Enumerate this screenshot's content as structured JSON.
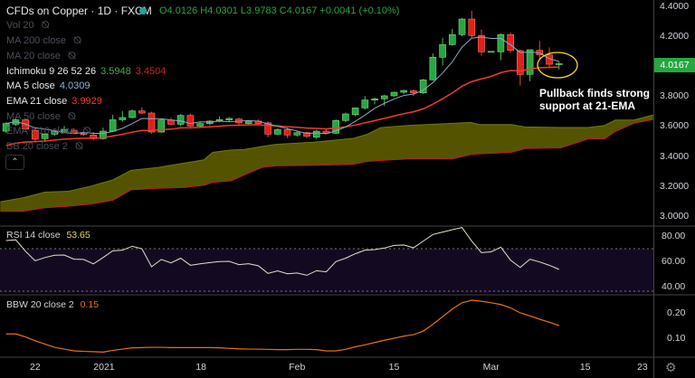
{
  "header": {
    "symbol_title": "CFDs on Copper · 1D · FXCM",
    "open": "O4.0126",
    "high": "H4.0301",
    "low": "L3.9783",
    "close": "C4.0167",
    "change": "+0.0041 (+0.10%)"
  },
  "indicators": [
    {
      "label": "Vol 20",
      "hidden": true
    },
    {
      "label": "MA 200 close",
      "hidden": true
    },
    {
      "label": "MA 20 close",
      "hidden": true
    },
    {
      "label": "Ichimoku 9 26 52 26",
      "v1": "3.5948",
      "v2": "3.4504",
      "hidden": false
    },
    {
      "label": "MA 5 close",
      "v1": "4.0309",
      "hidden": false
    },
    {
      "label": "EMA 21 close",
      "v1": "3.9929",
      "hidden": false
    },
    {
      "label": "MA 50 close",
      "hidden": true
    },
    {
      "label": "EMA 1 10 close",
      "hidden": true
    },
    {
      "label": "BB 20 close 2",
      "hidden": true
    }
  ],
  "collapse_icon": "chevron-up-icon",
  "hidden_icon": "eye-off-icon",
  "price_axis": [
    "4.4000",
    "4.2000",
    "4.0000",
    "3.8000",
    "3.6000",
    "3.4000",
    "3.2000",
    "3.0000"
  ],
  "price_axis_values": [
    4.4,
    4.2,
    4.0,
    3.8,
    3.6,
    3.4,
    3.2,
    3.0
  ],
  "last_price": "4.0167",
  "annotation": {
    "line1": "Pullback finds strong",
    "line2": "support at 21-EMA"
  },
  "rsi": {
    "label": "RSI 14 close",
    "value": "53.65",
    "axis": [
      "80.00",
      "60.00",
      "40.00"
    ],
    "axis_values": [
      80,
      60,
      40
    ],
    "bands": [
      70,
      30
    ]
  },
  "bbw": {
    "label": "BBW 20 close 2",
    "value": "0.15",
    "axis": [
      "0.20",
      "0.10"
    ],
    "axis_values": [
      0.2,
      0.1
    ]
  },
  "time_axis": [
    {
      "label": "22",
      "bar": 3
    },
    {
      "label": "2021",
      "bar": 10.1
    },
    {
      "label": "18",
      "bar": 20.1
    },
    {
      "label": "Feb",
      "bar": 30
    },
    {
      "label": "15",
      "bar": 40
    },
    {
      "label": "Mar",
      "bar": 50
    },
    {
      "label": "15",
      "bar": 59.7
    },
    {
      "label": "23",
      "bar": 65.6
    }
  ],
  "colors": {
    "up": "#26a641",
    "down": "#e0201b",
    "ema": "#f23b2f",
    "ma": "#8fa8c4",
    "cloud": "#545400",
    "rsi_band": "#130a22",
    "bbw": "#e8720c",
    "rsi": "#e6e1c8",
    "annotation": "#f2e21a"
  },
  "chart_data": {
    "type": "candlestick",
    "ohlc": [
      [
        3.566,
        3.625,
        3.555,
        3.617
      ],
      [
        3.612,
        3.65,
        3.6,
        3.642
      ],
      [
        3.642,
        3.648,
        3.575,
        3.58
      ],
      [
        3.572,
        3.59,
        3.5,
        3.512
      ],
      [
        3.516,
        3.552,
        3.495,
        3.546
      ],
      [
        3.546,
        3.575,
        3.535,
        3.566
      ],
      [
        3.564,
        3.6,
        3.555,
        3.576
      ],
      [
        3.572,
        3.585,
        3.545,
        3.552
      ],
      [
        3.552,
        3.565,
        3.535,
        3.544
      ],
      [
        3.54,
        3.56,
        3.505,
        3.516
      ],
      [
        3.516,
        3.59,
        3.51,
        3.566
      ],
      [
        3.566,
        3.675,
        3.56,
        3.642
      ],
      [
        3.642,
        3.7,
        3.63,
        3.657
      ],
      [
        3.657,
        3.71,
        3.65,
        3.701
      ],
      [
        3.701,
        3.725,
        3.68,
        3.687
      ],
      [
        3.687,
        3.695,
        3.55,
        3.56
      ],
      [
        3.56,
        3.65,
        3.555,
        3.641
      ],
      [
        3.641,
        3.655,
        3.605,
        3.612
      ],
      [
        3.612,
        3.68,
        3.6,
        3.671
      ],
      [
        3.671,
        3.685,
        3.595,
        3.6
      ],
      [
        3.6,
        3.625,
        3.59,
        3.617
      ],
      [
        3.617,
        3.64,
        3.605,
        3.633
      ],
      [
        3.633,
        3.665,
        3.625,
        3.643
      ],
      [
        3.641,
        3.66,
        3.63,
        3.651
      ],
      [
        3.647,
        3.655,
        3.6,
        3.621
      ],
      [
        3.617,
        3.64,
        3.605,
        3.633
      ],
      [
        3.633,
        3.645,
        3.61,
        3.617
      ],
      [
        3.621,
        3.63,
        3.525,
        3.546
      ],
      [
        3.546,
        3.585,
        3.54,
        3.576
      ],
      [
        3.576,
        3.59,
        3.52,
        3.54
      ],
      [
        3.54,
        3.565,
        3.53,
        3.556
      ],
      [
        3.556,
        3.562,
        3.52,
        3.532
      ],
      [
        3.526,
        3.575,
        3.515,
        3.566
      ],
      [
        3.566,
        3.58,
        3.545,
        3.552
      ],
      [
        3.552,
        3.645,
        3.548,
        3.637
      ],
      [
        3.637,
        3.69,
        3.625,
        3.681
      ],
      [
        3.677,
        3.725,
        3.665,
        3.721
      ],
      [
        3.721,
        3.8,
        3.712,
        3.774
      ],
      [
        3.774,
        3.79,
        3.745,
        3.782
      ],
      [
        3.782,
        3.81,
        3.735,
        3.802
      ],
      [
        3.802,
        3.83,
        3.795,
        3.826
      ],
      [
        3.826,
        3.842,
        3.815,
        3.838
      ],
      [
        3.836,
        3.845,
        3.8,
        3.822
      ],
      [
        3.822,
        3.915,
        3.815,
        3.909
      ],
      [
        3.909,
        4.085,
        3.905,
        4.06
      ],
      [
        4.06,
        4.19,
        4.005,
        4.144
      ],
      [
        4.144,
        4.25,
        4.138,
        4.211
      ],
      [
        4.211,
        4.322,
        4.2,
        4.315
      ],
      [
        4.315,
        4.37,
        4.19,
        4.205
      ],
      [
        4.205,
        4.245,
        4.07,
        4.096
      ],
      [
        4.096,
        4.1,
        4.092,
        4.099
      ],
      [
        4.096,
        4.22,
        4.04,
        4.211
      ],
      [
        4.211,
        4.225,
        4.09,
        4.106
      ],
      [
        4.104,
        4.11,
        3.87,
        3.945
      ],
      [
        3.945,
        4.11,
        3.9,
        4.11
      ],
      [
        4.106,
        4.168,
        4.04,
        4.076
      ],
      [
        4.076,
        4.125,
        3.985,
        4.013
      ],
      [
        4.0126,
        4.0301,
        3.9783,
        4.0167
      ]
    ],
    "ema21_seed": 3.455,
    "ichimoku_cloud": {
      "bars": [
        -0.6,
        1.7,
        4.0,
        6.4,
        8.7,
        11.0,
        12.9,
        15.7,
        18.5,
        20.4,
        21.3,
        23.2,
        24.6,
        26.4,
        27.8,
        32.0,
        35.8,
        37.2,
        38.6,
        41.4,
        46.0,
        47.9,
        48.8,
        52.1,
        53.5,
        57.2,
        60.0,
        61.7,
        62.8,
        64.7,
        66.7
      ],
      "span_a": [
        3.094,
        3.12,
        3.158,
        3.164,
        3.198,
        3.24,
        3.304,
        3.324,
        3.354,
        3.374,
        3.424,
        3.44,
        3.444,
        3.464,
        3.478,
        3.494,
        3.518,
        3.544,
        3.59,
        3.604,
        3.618,
        3.624,
        3.61,
        3.61,
        3.594,
        3.59,
        3.59,
        3.604,
        3.64,
        3.64,
        3.674
      ],
      "span_b": [
        3.03,
        3.03,
        3.054,
        3.064,
        3.078,
        3.104,
        3.174,
        3.184,
        3.19,
        3.204,
        3.224,
        3.234,
        3.274,
        3.324,
        3.334,
        3.338,
        3.344,
        3.364,
        3.37,
        3.38,
        3.38,
        3.41,
        3.414,
        3.424,
        3.45,
        3.454,
        3.514,
        3.514,
        3.564,
        3.618,
        3.644
      ]
    },
    "rsi_values": [
      76.4,
      77,
      68,
      60.5,
      63,
      64.8,
      65,
      61.7,
      61.5,
      58,
      63,
      68.3,
      68.8,
      71.9,
      70,
      55.7,
      61.5,
      58.8,
      62.5,
      56.9,
      58,
      59,
      59.8,
      60,
      57.4,
      58.1,
      56.5,
      50.5,
      52.5,
      50.2,
      50.8,
      49,
      52.6,
      51.7,
      59.8,
      62.5,
      66,
      68.8,
      69.3,
      70.5,
      72.6,
      72.9,
      70.7,
      76,
      81.2,
      83.1,
      85,
      86.7,
      76,
      66.9,
      67.5,
      71.2,
      61,
      55.2,
      61.7,
      59.5,
      56.9,
      53.65
    ],
    "bbw_values": [
      0.117,
      0.117,
      0.105,
      0.09,
      0.077,
      0.064,
      0.057,
      0.05,
      0.048,
      0.047,
      0.045,
      0.052,
      0.057,
      0.062,
      0.063,
      0.064,
      0.064,
      0.063,
      0.063,
      0.063,
      0.063,
      0.063,
      0.062,
      0.06,
      0.058,
      0.057,
      0.057,
      0.056,
      0.055,
      0.055,
      0.056,
      0.056,
      0.055,
      0.05,
      0.05,
      0.056,
      0.066,
      0.074,
      0.083,
      0.092,
      0.1,
      0.108,
      0.114,
      0.128,
      0.155,
      0.185,
      0.215,
      0.24,
      0.25,
      0.246,
      0.24,
      0.233,
      0.22,
      0.2,
      0.188,
      0.175,
      0.163,
      0.15
    ],
    "ylim": [
      2.95,
      4.42
    ]
  }
}
